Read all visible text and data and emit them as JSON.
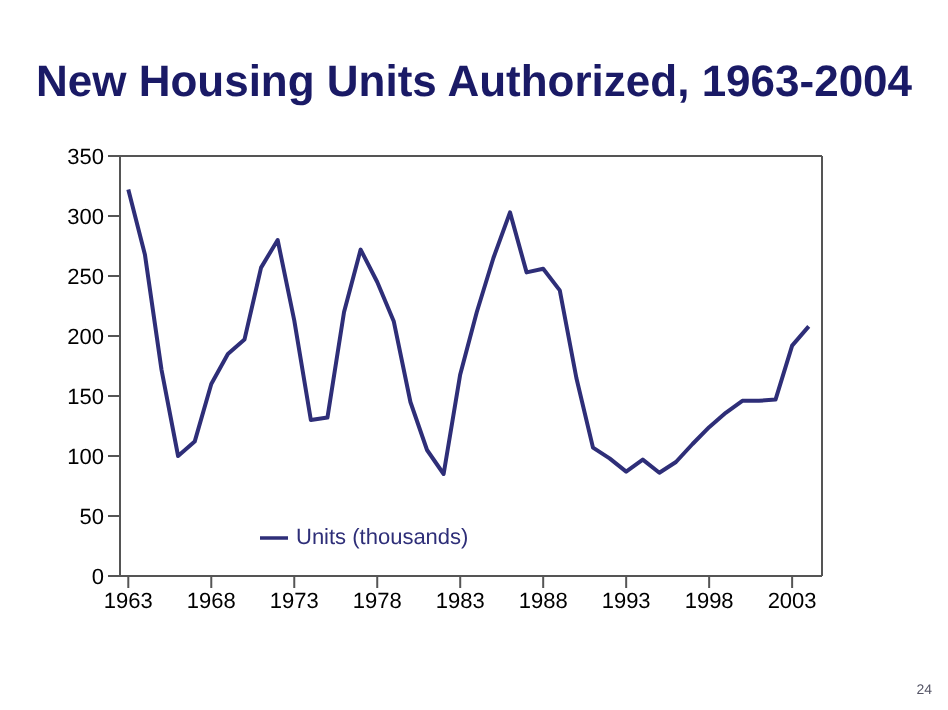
{
  "chart_data": {
    "type": "line",
    "title": "New Housing Units Authorized, 1963-2004",
    "x": [
      1963,
      1964,
      1965,
      1966,
      1967,
      1968,
      1969,
      1970,
      1971,
      1972,
      1973,
      1974,
      1975,
      1976,
      1977,
      1978,
      1979,
      1980,
      1981,
      1982,
      1983,
      1984,
      1985,
      1986,
      1987,
      1988,
      1989,
      1990,
      1991,
      1992,
      1993,
      1994,
      1995,
      1996,
      1997,
      1998,
      1999,
      2000,
      2001,
      2002,
      2003,
      2004
    ],
    "series": [
      {
        "name": "Units (thousands)",
        "color": "#2e2e78",
        "values": [
          322,
          268,
          172,
          100,
          112,
          160,
          185,
          197,
          257,
          280,
          213,
          130,
          132,
          220,
          272,
          245,
          212,
          145,
          105,
          85,
          168,
          220,
          265,
          303,
          253,
          256,
          238,
          165,
          107,
          98,
          87,
          97,
          86,
          95,
          110,
          124,
          136,
          146,
          146,
          147,
          192,
          208
        ]
      }
    ],
    "xlim": [
      1962.5,
      2004.8
    ],
    "xticks": [
      1963,
      1968,
      1973,
      1978,
      1983,
      1988,
      1993,
      1998,
      2003
    ],
    "ylim": [
      0,
      350
    ],
    "yticks": [
      0,
      50,
      100,
      150,
      200,
      250,
      300,
      350
    ],
    "legend": "bottom left",
    "marker": "none",
    "line_style": "solid",
    "annotations": [
      "24"
    ]
  }
}
